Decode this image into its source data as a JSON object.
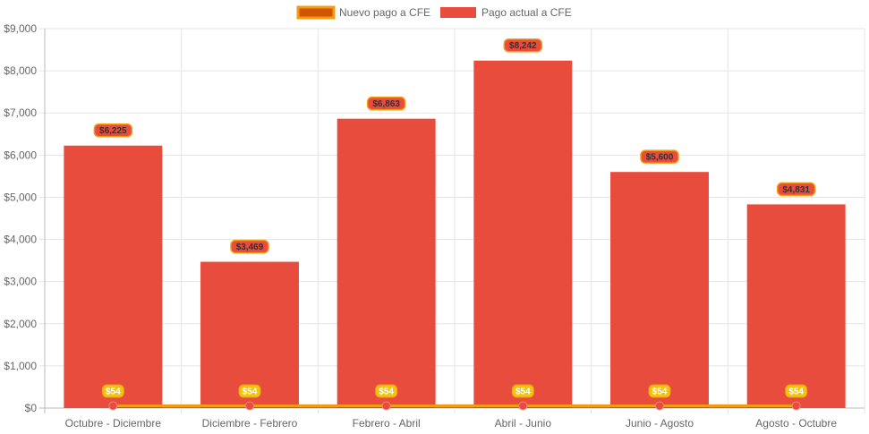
{
  "chart_data": {
    "type": "bar",
    "categories": [
      "Octubre - Diciembre",
      "Diciembre - Febrero",
      "Febrero - Abril",
      "Abril - Junio",
      "Junio - Agosto",
      "Agosto - Octubre"
    ],
    "series": [
      {
        "name": "Nuevo pago a CFE",
        "type": "line",
        "values": [
          54,
          54,
          54,
          54,
          54,
          54
        ],
        "labels": [
          "$54",
          "$54",
          "$54",
          "$54",
          "$54",
          "$54"
        ],
        "color": "#f39c12",
        "fill_color": "#d35400",
        "point_color": "#e74c3c",
        "label_bg": "#f1c40f",
        "label_text_color": "#ffffff"
      },
      {
        "name": "Pago actual a CFE",
        "type": "bar",
        "values": [
          6225,
          3469,
          6863,
          8242,
          5600,
          4831
        ],
        "labels": [
          "$6,225",
          "$3,469",
          "$6,863",
          "$8,242",
          "$5,600",
          "$4,831"
        ],
        "color": "#e74c3c",
        "label_bg": "#e74c3c",
        "label_border": "#f39c12",
        "label_text_color": "#333333"
      }
    ],
    "ylim": [
      0,
      9000
    ],
    "y_ticks": [
      "$0",
      "$1,000",
      "$2,000",
      "$3,000",
      "$4,000",
      "$5,000",
      "$6,000",
      "$7,000",
      "$8,000",
      "$9,000"
    ],
    "grid": true,
    "legend": "top-center",
    "xlabel": "",
    "ylabel": ""
  }
}
